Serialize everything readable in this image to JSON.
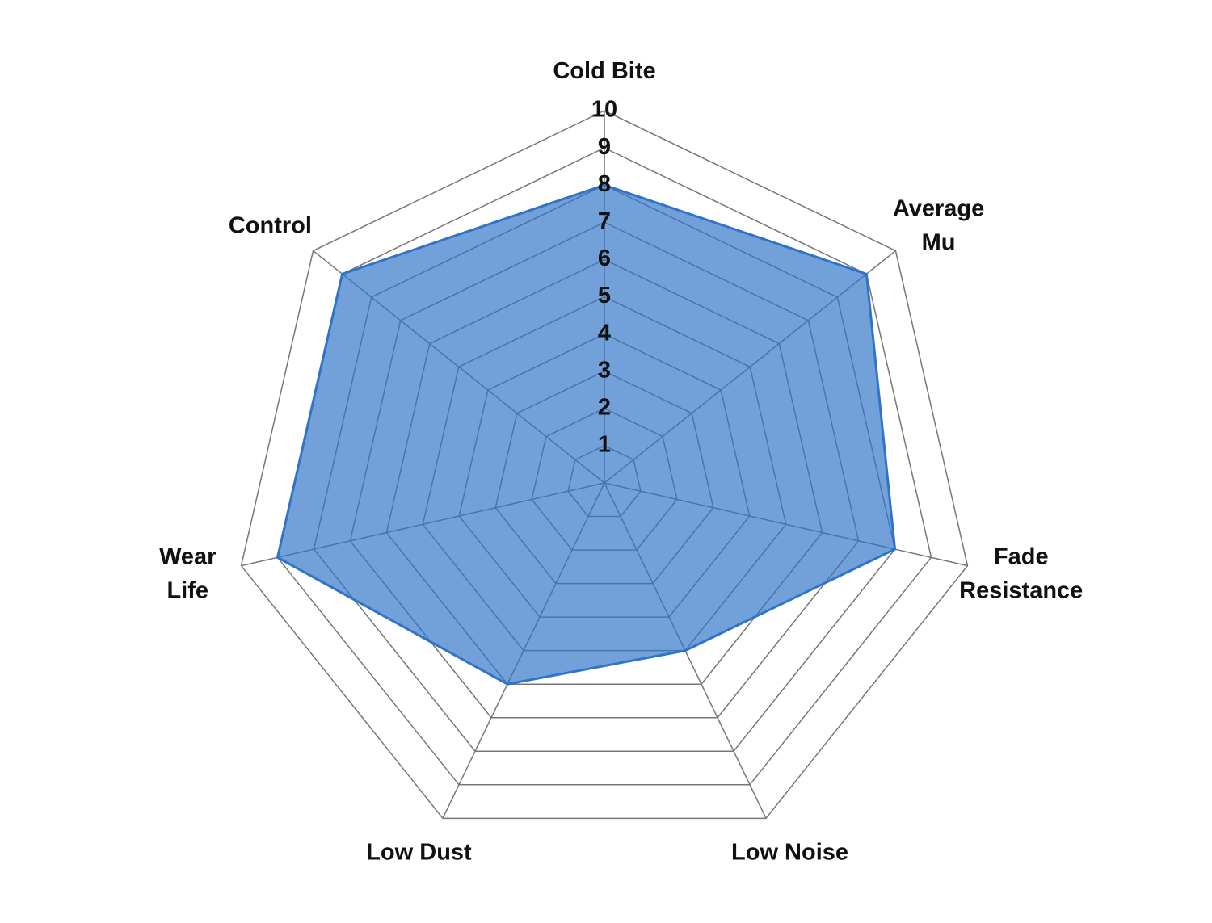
{
  "chart_data": {
    "type": "radar",
    "categories": [
      "Cold Bite",
      "Average\nMu",
      "Fade\nResistance",
      "Low Noise",
      "Low Dust",
      "Wear\nLife",
      "Control"
    ],
    "series": [
      {
        "color": "#2f74c8",
        "values": [
          8,
          9,
          8,
          5,
          6,
          9,
          9
        ]
      }
    ],
    "rlim": [
      0,
      10
    ],
    "rticks": [
      1,
      2,
      3,
      4,
      5,
      6,
      7,
      8,
      9,
      10
    ],
    "grid": true
  }
}
